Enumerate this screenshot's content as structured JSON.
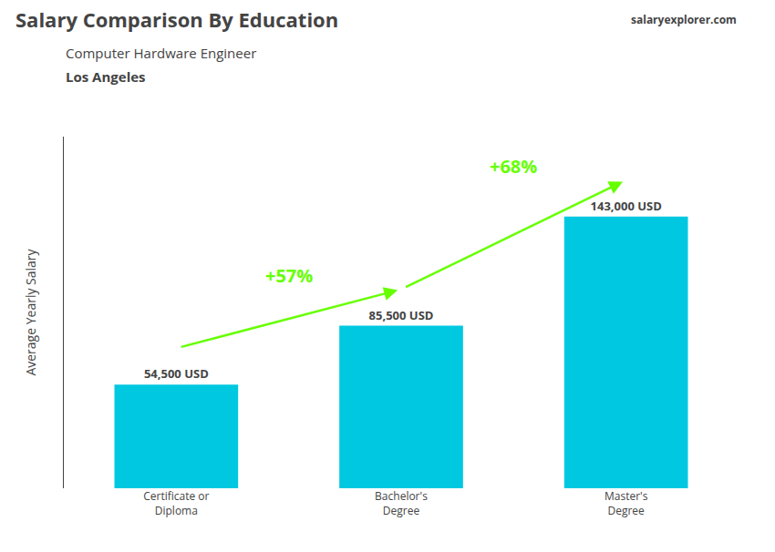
{
  "chart_data": {
    "type": "bar",
    "title": "Salary Comparison By Education",
    "subtitle": [
      "Computer Hardware Engineer",
      "Los Angeles"
    ],
    "ylabel": "Average Yearly Salary",
    "categories": [
      "Certificate or\nDiploma",
      "Bachelor's\nDegree",
      "Master's\nDegree"
    ],
    "values": [
      54500,
      85500,
      143000
    ],
    "value_labels": [
      "54,500 USD",
      "85,500 USD",
      "143,000 USD"
    ],
    "data_labels": true,
    "color": "#00c8e0",
    "ylim": [
      0,
      185000
    ],
    "tick_labels": "x",
    "grid": false,
    "annotations": [
      {
        "text": "+57%",
        "from": 0,
        "to": 1,
        "color": "#66ff00"
      },
      {
        "text": "+68%",
        "from": 1,
        "to": 2,
        "color": "#66ff00"
      },
      {
        "text": "salaryexplorer.com"
      }
    ]
  }
}
